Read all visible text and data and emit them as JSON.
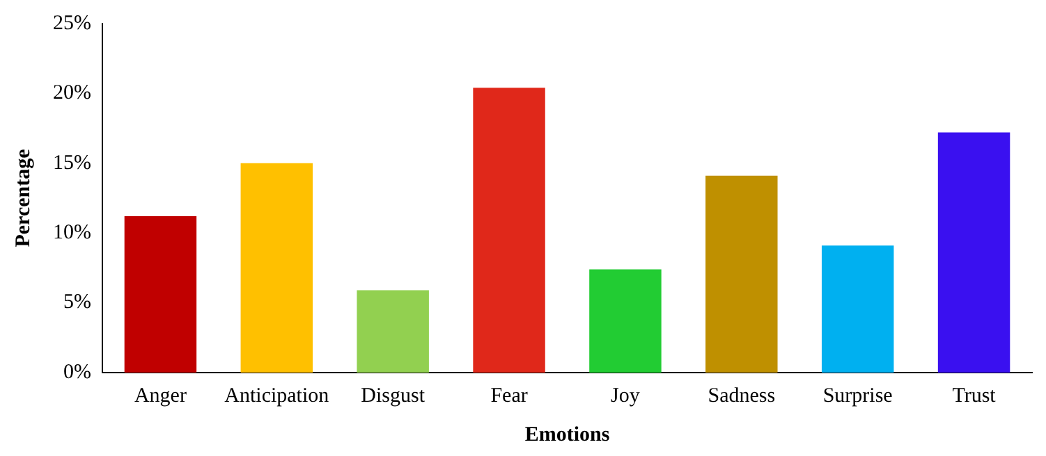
{
  "chart_data": {
    "type": "bar",
    "xlabel": "Emotions",
    "ylabel": "Percentage",
    "categories": [
      "Anger",
      "Anticipation",
      "Disgust",
      "Fear",
      "Joy",
      "Sadness",
      "Surprise",
      "Trust"
    ],
    "values": [
      11.2,
      15.0,
      5.9,
      20.4,
      7.4,
      14.1,
      9.1,
      17.2
    ],
    "colors": [
      "#c00000",
      "#ffc000",
      "#92d050",
      "#e0281a",
      "#22cc33",
      "#bf9000",
      "#00b0f0",
      "#3a10f0"
    ],
    "ylim": [
      0,
      25
    ],
    "yticks": [
      {
        "value": 0,
        "label": "0%"
      },
      {
        "value": 5,
        "label": "5%"
      },
      {
        "value": 10,
        "label": "10%"
      },
      {
        "value": 15,
        "label": "15%"
      },
      {
        "value": 20,
        "label": "20%"
      },
      {
        "value": 25,
        "label": "25%"
      }
    ],
    "grid": false,
    "legend": false
  }
}
